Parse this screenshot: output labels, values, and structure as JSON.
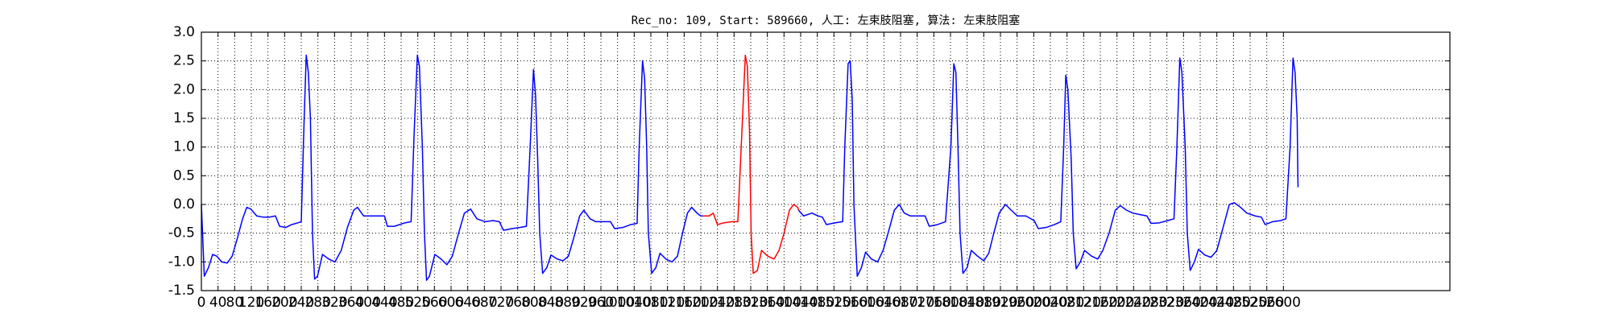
{
  "chart_data": {
    "type": "line",
    "title": "Rec_no: 109, Start: 589660, 人工: 左束肢阻塞, 算法: 左束肢阻塞",
    "xlim": [
      0,
      3000
    ],
    "ylim": [
      -1.5,
      3.0
    ],
    "xticks": [
      0,
      40,
      80,
      120,
      160,
      200,
      240,
      280,
      320,
      360,
      400,
      440,
      480,
      520,
      560,
      600,
      640,
      680,
      720,
      760,
      800,
      840,
      880,
      920,
      960,
      1000,
      1040,
      1080,
      1120,
      1160,
      1200,
      1240,
      1280,
      1320,
      1360,
      1400,
      1440,
      1480,
      1520,
      1560,
      1600,
      1640,
      1680,
      1720,
      1760,
      1800,
      1840,
      1880,
      1920,
      1960,
      2000,
      2040,
      2080,
      2120,
      2160,
      2200,
      2240,
      2280,
      2320,
      2360,
      2400,
      2440,
      2480,
      2520,
      2560,
      2600
    ],
    "yticks": [
      {
        "value": -1.5,
        "label": "-1.5"
      },
      {
        "value": -1,
        "label": "-1.0"
      },
      {
        "value": -0.5,
        "label": "-0.5"
      },
      {
        "value": 0,
        "label": "0.0"
      },
      0.5,
      {
        "value": 1,
        "label": "1.0"
      },
      1.5,
      {
        "value": 2,
        "label": "2.0"
      },
      2.5,
      {
        "value": 3,
        "label": "3.0"
      }
    ],
    "grid": true,
    "series": [
      {
        "color": "#0000ff",
        "x": [
          0,
          7,
          17,
          27,
          37,
          49,
          62,
          74,
          86,
          99,
          109,
          119,
          133,
          148,
          163,
          178,
          188,
          203,
          217,
          232,
          240,
          247,
          252,
          257,
          262,
          267,
          272,
          279,
          291,
          306,
          321,
          336,
          351,
          366,
          375,
          390,
          405,
          425,
          440,
          447,
          464,
          489,
          504,
          511,
          519,
          524,
          531,
          536,
          541,
          548,
          561,
          576,
          590,
          603,
          618,
          632,
          647,
          662,
          682,
          701,
          716,
          726,
          746,
          766,
          781,
          790,
          798,
          803,
          808,
          813,
          820,
          830,
          840,
          855,
          869,
          882,
          894,
          909,
          919,
          934,
          948,
          968,
          983,
          993,
          1013,
          1032,
          1047,
          1052,
          1060,
          1065,
          1070,
          1074,
          1082,
          1092,
          1102,
          1116,
          1131,
          1144,
          1156,
          1168,
          1178,
          1191,
          1200,
          1205
        ],
        "values": [
          0.0,
          -1.25,
          -1.1,
          -0.87,
          -0.9,
          -1.0,
          -1.02,
          -0.9,
          -0.6,
          -0.25,
          -0.05,
          -0.08,
          -0.2,
          -0.22,
          -0.22,
          -0.2,
          -0.38,
          -0.4,
          -0.35,
          -0.32,
          -0.3,
          1.5,
          2.6,
          2.3,
          1.5,
          -0.5,
          -1.3,
          -1.25,
          -0.87,
          -0.95,
          -1.0,
          -0.8,
          -0.4,
          -0.1,
          -0.05,
          -0.2,
          -0.2,
          -0.2,
          -0.2,
          -0.38,
          -0.38,
          -0.32,
          -0.3,
          1.2,
          2.6,
          2.4,
          1.0,
          -0.5,
          -1.32,
          -1.25,
          -0.87,
          -0.95,
          -1.05,
          -0.9,
          -0.5,
          -0.15,
          -0.08,
          -0.25,
          -0.3,
          -0.28,
          -0.3,
          -0.45,
          -0.42,
          -0.4,
          -0.38,
          1.0,
          2.35,
          1.9,
          0.8,
          -0.5,
          -1.2,
          -1.1,
          -0.88,
          -0.95,
          -0.98,
          -0.9,
          -0.6,
          -0.2,
          -0.1,
          -0.25,
          -0.3,
          -0.3,
          -0.3,
          -0.42,
          -0.4,
          -0.35,
          -0.33,
          1.0,
          2.5,
          2.2,
          1.0,
          -0.5,
          -1.2,
          -1.1,
          -0.85,
          -0.95,
          -1.0,
          -0.9,
          -0.5,
          -0.15,
          -0.05,
          -0.15,
          -0.2,
          -0.2
        ]
      },
      {
        "color": "#ff0000",
        "x": [
          1205,
          1220,
          1230,
          1240,
          1255,
          1275,
          1289,
          1299,
          1307,
          1312,
          1317,
          1321,
          1326,
          1336,
          1346,
          1361,
          1376,
          1388,
          1400,
          1413,
          1423,
          1433,
          1435
        ],
        "values": [
          -0.2,
          -0.2,
          -0.15,
          -0.35,
          -0.32,
          -0.3,
          -0.3,
          1.3,
          2.6,
          2.4,
          1.3,
          -0.5,
          -1.2,
          -1.15,
          -0.8,
          -0.9,
          -0.95,
          -0.8,
          -0.5,
          -0.1,
          0.0,
          -0.05,
          -0.1
        ]
      },
      {
        "color": "#0000ff",
        "x": [
          1435,
          1447,
          1467,
          1482,
          1492,
          1502,
          1522,
          1541,
          1546,
          1554,
          1559,
          1564,
          1568,
          1576,
          1586,
          1596,
          1610,
          1625,
          1638,
          1650,
          1665,
          1677,
          1689,
          1704,
          1724,
          1739,
          1749,
          1769,
          1788,
          1801,
          1808,
          1813,
          1818,
          1823,
          1830,
          1840,
          1850,
          1865,
          1880,
          1892,
          1904,
          1917,
          1932,
          1946,
          1961,
          1981,
          2001,
          2011,
          2030,
          2050,
          2065,
          2072,
          2077,
          2082,
          2090,
          2095,
          2102,
          2112,
          2122,
          2139,
          2154,
          2166,
          2181,
          2196,
          2208,
          2223,
          2238,
          2258,
          2272,
          2282,
          2302,
          2322,
          2337,
          2344,
          2351,
          2356,
          2364,
          2369,
          2376,
          2386,
          2396,
          2411,
          2426,
          2440,
          2455,
          2470,
          2482,
          2497,
          2512,
          2532,
          2547,
          2556,
          2574,
          2594,
          2606,
          2616,
          2623,
          2628,
          2633,
          2635
        ],
        "values": [
          -0.1,
          -0.2,
          -0.15,
          -0.2,
          -0.22,
          -0.35,
          -0.32,
          -0.3,
          1.0,
          2.45,
          2.5,
          1.8,
          0.0,
          -1.25,
          -1.1,
          -0.83,
          -0.95,
          -1.0,
          -0.8,
          -0.5,
          -0.1,
          0.0,
          -0.15,
          -0.2,
          -0.2,
          -0.2,
          -0.38,
          -0.35,
          -0.3,
          1.0,
          2.45,
          2.3,
          1.0,
          -0.5,
          -1.2,
          -1.1,
          -0.8,
          -0.9,
          -0.98,
          -0.85,
          -0.5,
          -0.15,
          0.0,
          -0.1,
          -0.2,
          -0.2,
          -0.28,
          -0.42,
          -0.4,
          -0.35,
          -0.3,
          1.0,
          2.25,
          2.0,
          0.8,
          -0.5,
          -1.12,
          -1.0,
          -0.8,
          -0.9,
          -0.95,
          -0.8,
          -0.5,
          -0.1,
          -0.02,
          -0.1,
          -0.15,
          -0.18,
          -0.2,
          -0.33,
          -0.32,
          -0.28,
          -0.25,
          1.0,
          2.55,
          2.3,
          1.0,
          -0.5,
          -1.15,
          -1.0,
          -0.78,
          -0.88,
          -0.92,
          -0.8,
          -0.4,
          0.0,
          0.03,
          -0.05,
          -0.15,
          -0.2,
          -0.22,
          -0.35,
          -0.3,
          -0.28,
          -0.25,
          1.0,
          2.55,
          2.3,
          1.5,
          0.3
        ]
      }
    ]
  }
}
